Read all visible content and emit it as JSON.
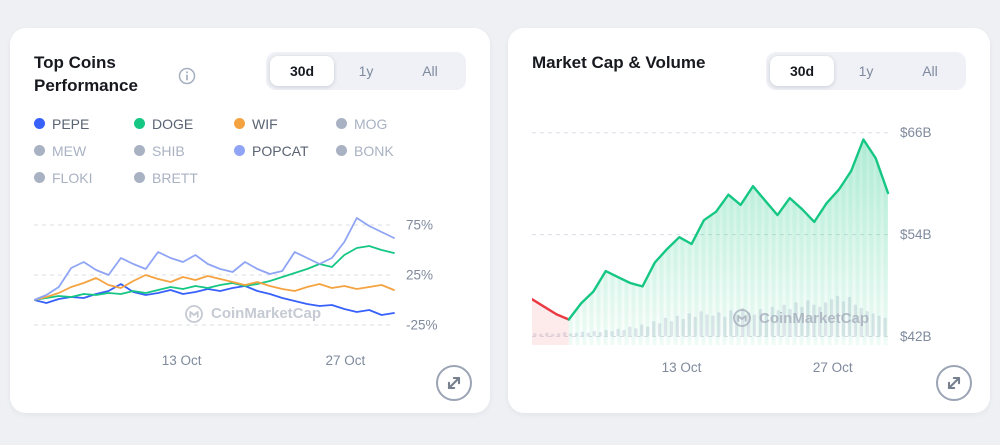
{
  "page": {
    "background": "#eef0f4"
  },
  "left_card": {
    "title": "Top Coins Performance",
    "tabs": [
      {
        "label": "30d",
        "active": true
      },
      {
        "label": "1y",
        "active": false
      },
      {
        "label": "All",
        "active": false
      }
    ],
    "legend": [
      {
        "label": "PEPE",
        "color": "#3861fb",
        "dim": false
      },
      {
        "label": "DOGE",
        "color": "#16c784",
        "dim": false
      },
      {
        "label": "WIF",
        "color": "#f5a341",
        "dim": false
      },
      {
        "label": "MOG",
        "color": "#a9b2c3",
        "dim": true
      },
      {
        "label": "MEW",
        "color": "#a9b2c3",
        "dim": true
      },
      {
        "label": "SHIB",
        "color": "#a9b2c3",
        "dim": true
      },
      {
        "label": "POPCAT",
        "color": "#8fa4f4",
        "dim": false
      },
      {
        "label": "BONK",
        "color": "#a9b2c3",
        "dim": true
      },
      {
        "label": "FLOKI",
        "color": "#a9b2c3",
        "dim": true
      },
      {
        "label": "BRETT",
        "color": "#a9b2c3",
        "dim": true
      }
    ],
    "watermark": "CoinMarketCap"
  },
  "right_card": {
    "title": "Market Cap & Volume",
    "tabs": [
      {
        "label": "30d",
        "active": true
      },
      {
        "label": "1y",
        "active": false
      },
      {
        "label": "All",
        "active": false
      }
    ],
    "watermark": "CoinMarketCap"
  },
  "chart_data": [
    {
      "type": "line",
      "title": "Top Coins Performance",
      "timeframe": "30d",
      "x_unit": "day",
      "xticks": [
        {
          "label": "13 Oct",
          "pos": 0.41
        },
        {
          "label": "27 Oct",
          "pos": 0.865
        }
      ],
      "yticks": [
        {
          "label": "75%",
          "value": 75
        },
        {
          "label": "25%",
          "value": 25
        },
        {
          "label": "-25%",
          "value": -25
        }
      ],
      "ylim": [
        -38,
        92
      ],
      "unit": "percent change",
      "series": [
        {
          "name": "PEPE",
          "color": "#3861fb",
          "values": [
            0,
            -3,
            1,
            3,
            2,
            6,
            9,
            16,
            8,
            5,
            7,
            10,
            6,
            8,
            11,
            9,
            12,
            14,
            9,
            6,
            2,
            -1,
            -4,
            -6,
            -5,
            -9,
            -12,
            -10,
            -15,
            -13
          ]
        },
        {
          "name": "DOGE",
          "color": "#16c784",
          "values": [
            0,
            2,
            4,
            3,
            6,
            5,
            7,
            6,
            9,
            7,
            10,
            13,
            11,
            14,
            12,
            15,
            17,
            14,
            16,
            19,
            23,
            27,
            31,
            36,
            33,
            45,
            52,
            54,
            50,
            47
          ]
        },
        {
          "name": "WIF",
          "color": "#f5a341",
          "values": [
            0,
            3,
            7,
            13,
            17,
            22,
            15,
            12,
            19,
            25,
            21,
            18,
            23,
            20,
            24,
            21,
            18,
            15,
            18,
            14,
            11,
            9,
            13,
            16,
            12,
            14,
            11,
            13,
            15,
            10
          ]
        },
        {
          "name": "POPCAT",
          "color": "#8fa4f4",
          "values": [
            0,
            5,
            13,
            32,
            38,
            30,
            25,
            42,
            36,
            31,
            48,
            42,
            38,
            45,
            36,
            31,
            28,
            38,
            31,
            26,
            29,
            48,
            42,
            36,
            42,
            58,
            82,
            74,
            68,
            62
          ]
        }
      ]
    },
    {
      "type": "area",
      "title": "Market Cap & Volume",
      "timeframe": "30d",
      "x_unit": "day",
      "xticks": [
        {
          "label": "13 Oct",
          "pos": 0.42
        },
        {
          "label": "27 Oct",
          "pos": 0.845
        }
      ],
      "yticks": [
        {
          "label": "$66B",
          "value": 66
        },
        {
          "label": "$54B",
          "value": 54
        },
        {
          "label": "$42B",
          "value": 42
        }
      ],
      "ylim": [
        41,
        67.5
      ],
      "unit": "USD billions",
      "colors": {
        "up": "#16c784",
        "down": "#ea3943"
      },
      "down_segment_end_index": 3,
      "series": [
        {
          "name": "Market Cap",
          "values": [
            46.4,
            45.5,
            44.6,
            44.0,
            45.9,
            47.3,
            49.7,
            49.0,
            48.3,
            47.9,
            50.7,
            52.3,
            53.7,
            52.9,
            55.7,
            56.7,
            58.7,
            57.5,
            59.7,
            58.0,
            56.3,
            58.3,
            57.0,
            55.5,
            57.7,
            59.3,
            61.5,
            65.2,
            63.0,
            58.9
          ]
        }
      ],
      "volume": {
        "color": "#e2e6ed",
        "baseline": 42,
        "values": [
          0.06,
          0.05,
          0.07,
          0.05,
          0.06,
          0.08,
          0.06,
          0.07,
          0.09,
          0.07,
          0.1,
          0.08,
          0.12,
          0.1,
          0.14,
          0.12,
          0.18,
          0.15,
          0.22,
          0.18,
          0.28,
          0.24,
          0.34,
          0.28,
          0.38,
          0.32,
          0.42,
          0.36,
          0.46,
          0.4,
          0.38,
          0.44,
          0.36,
          0.48,
          0.4,
          0.52,
          0.44,
          0.4,
          0.5,
          0.42,
          0.54,
          0.48,
          0.58,
          0.5,
          0.62,
          0.54,
          0.66,
          0.58,
          0.54,
          0.62,
          0.68,
          0.74,
          0.64,
          0.72,
          0.58,
          0.52,
          0.46,
          0.42,
          0.38,
          0.34
        ]
      }
    }
  ]
}
